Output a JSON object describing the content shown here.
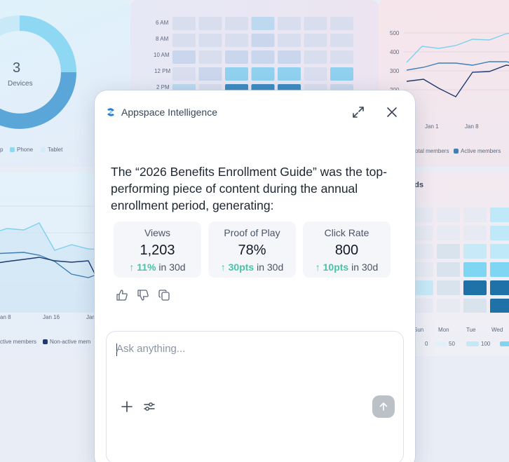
{
  "background": {
    "donut": {
      "value": "3",
      "label": "Devices",
      "legend": [
        "p",
        "Phone",
        "Tablet"
      ]
    },
    "heatmap_top": {
      "row_labels": [
        "6 AM",
        "8 AM",
        "10 AM",
        "12 PM",
        "2 PM"
      ]
    },
    "line_top_right": {
      "y_ticks": [
        "500",
        "400",
        "300",
        "200"
      ],
      "x_ticks": [
        "Jan 1",
        "Jan 8"
      ],
      "legend": [
        "otal members",
        "Active members"
      ]
    },
    "line_left": {
      "x_ticks": [
        "an 8",
        "Jan 16",
        "Jan"
      ],
      "legend": [
        "ctive members",
        "Non-active mem"
      ]
    },
    "heatmap_right": {
      "title": "eds",
      "day_labels": [
        "Sun",
        "Mon",
        "Tue",
        "Wed"
      ],
      "scale": [
        "0",
        "50",
        "100"
      ]
    }
  },
  "modal": {
    "brand": "Appspace Intelligence",
    "answer": "The “2026 Benefits Enrollment Guide” was the top-performing piece of content during the annual enrollment period, generating:",
    "stats": [
      {
        "label": "Views",
        "value": "1,203",
        "delta": "↑ 11%",
        "period": " in 30d"
      },
      {
        "label": "Proof of Play",
        "value": "78%",
        "delta": "↑ 30pts",
        "period": " in 30d"
      },
      {
        "label": "Click Rate",
        "value": "800",
        "delta": "↑ 10pts",
        "period": " in 30d"
      }
    ],
    "composer": {
      "placeholder": "Ask anything..."
    }
  },
  "colors": {
    "accent_green": "#46c3a8",
    "brand_blue": "#2b7fd1",
    "send_disabled": "#bcc1c8"
  }
}
